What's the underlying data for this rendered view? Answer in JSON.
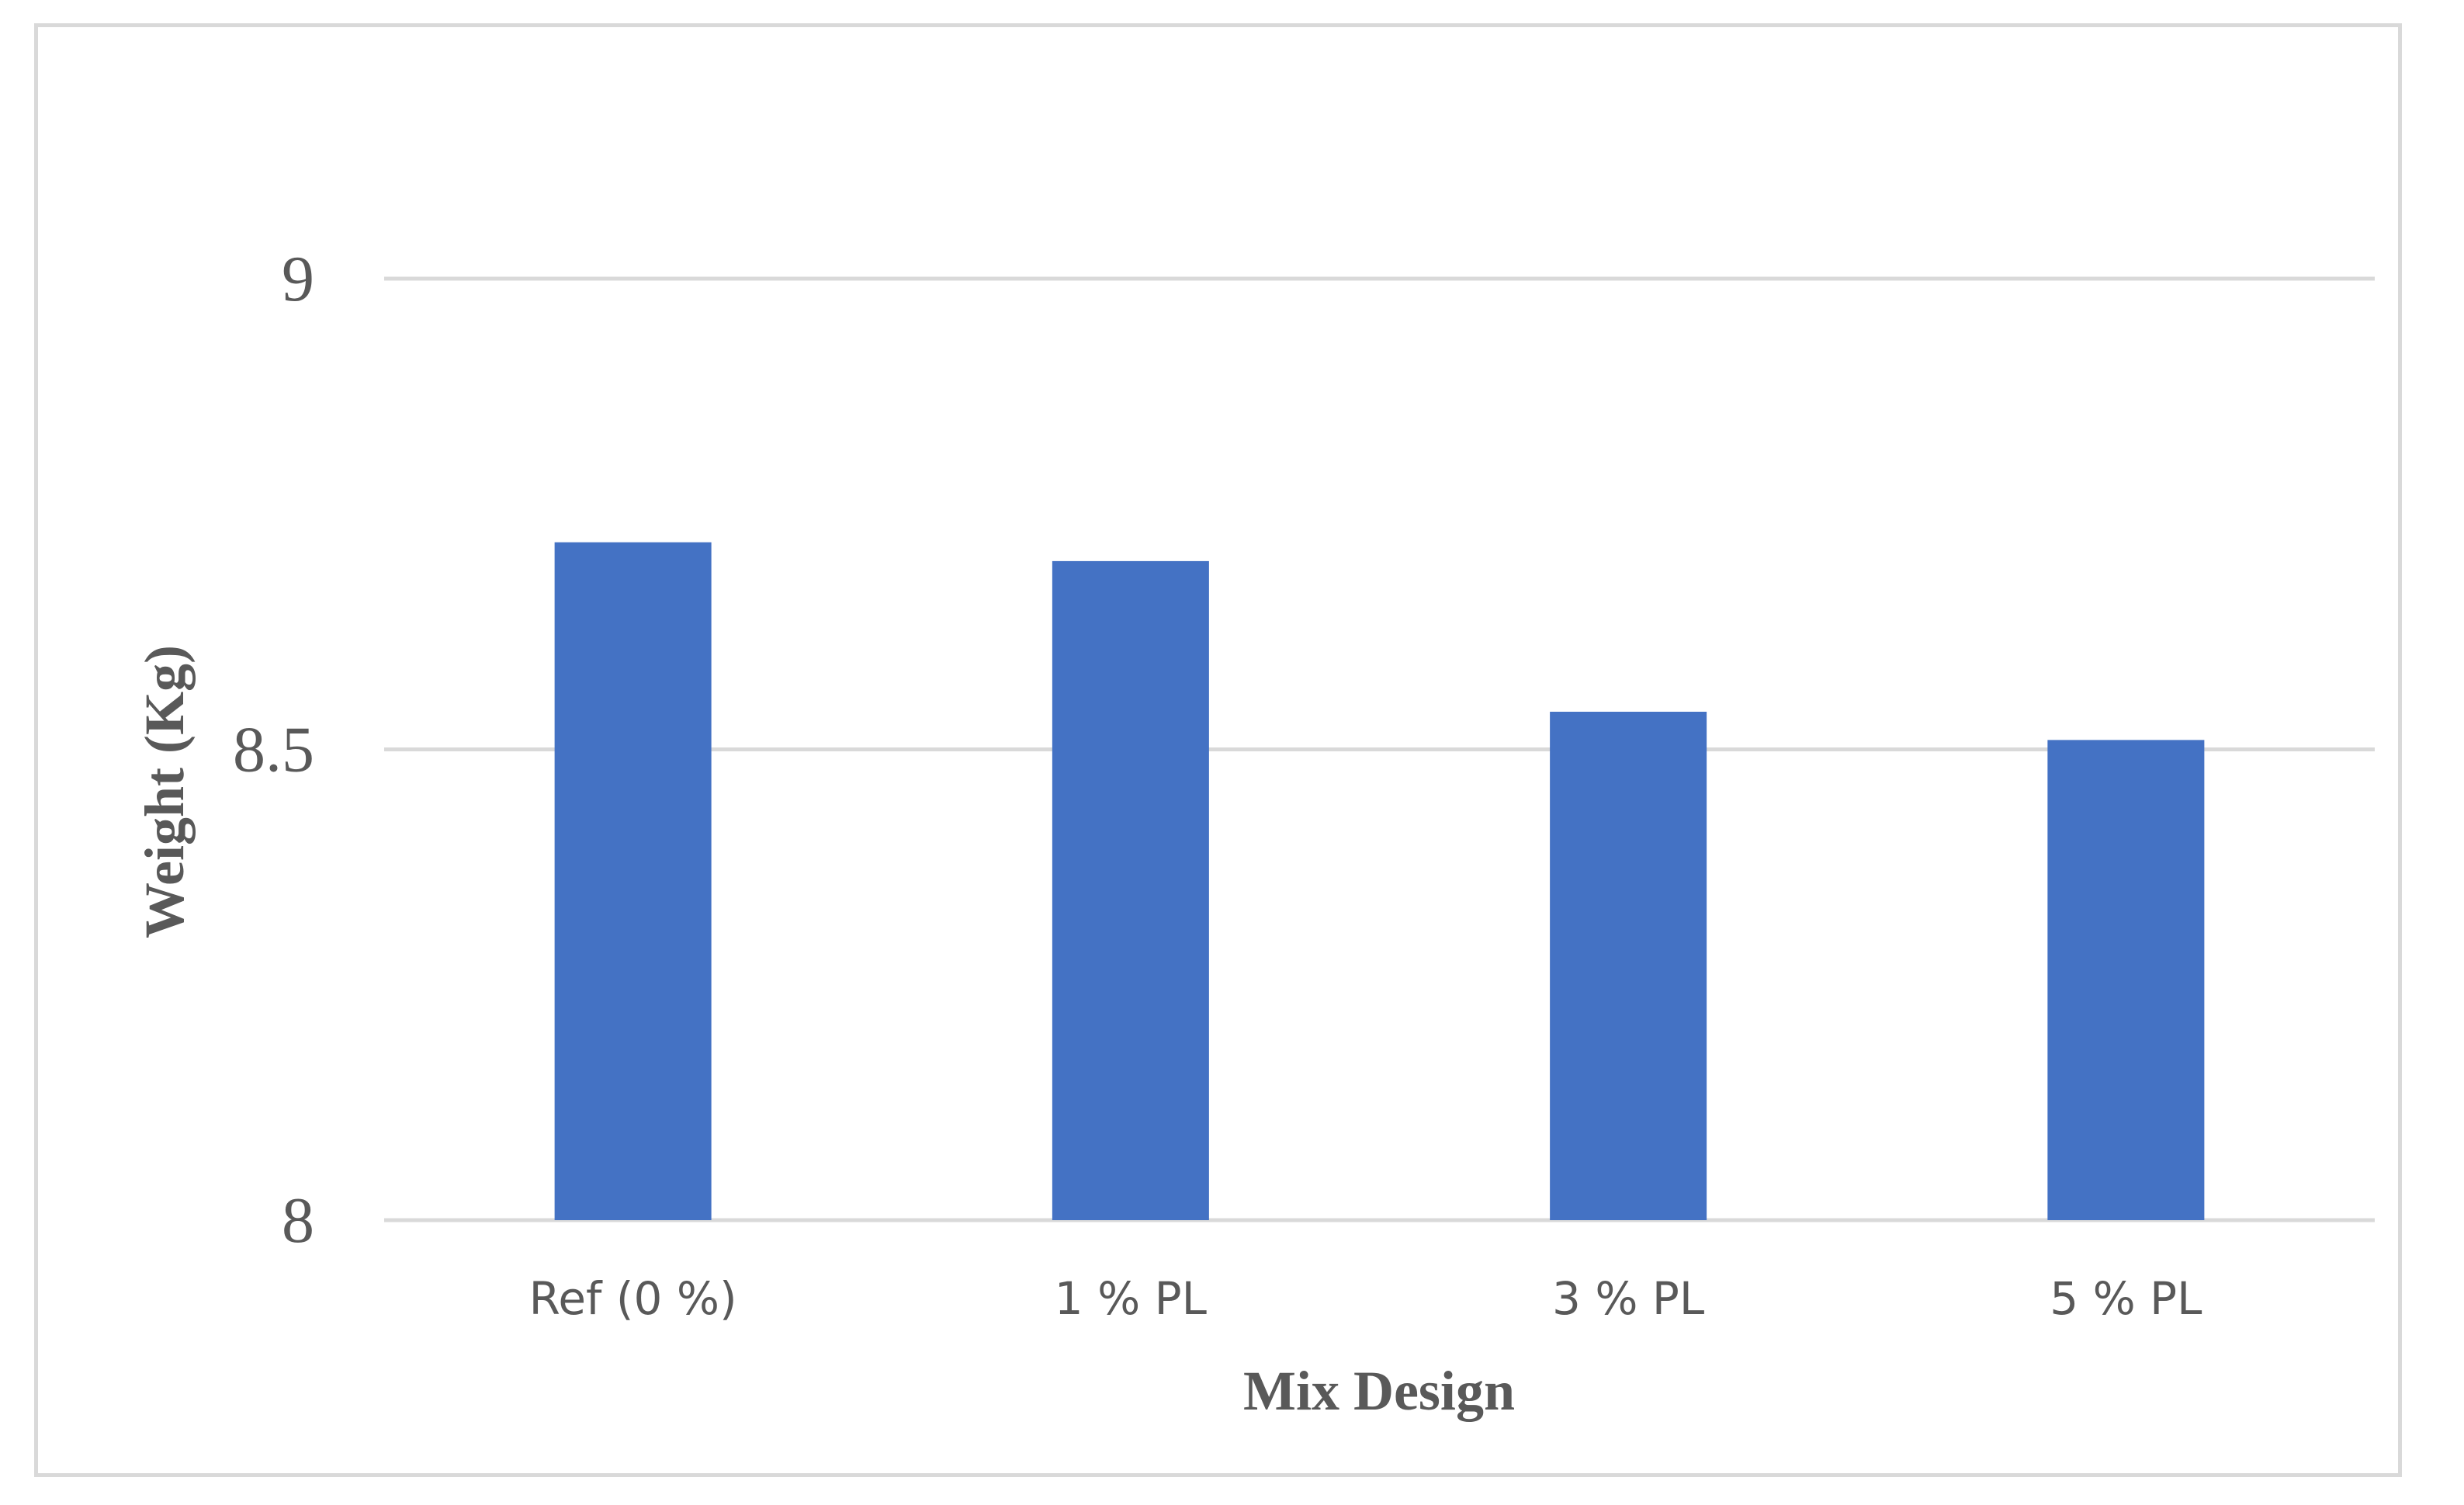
{
  "chart_data": {
    "type": "bar",
    "title": "",
    "xlabel": "Mix Design",
    "ylabel": "Weight (Kg)",
    "categories": [
      "Ref (0 %)",
      "1 % PL",
      "3 % PL",
      "5 % PL"
    ],
    "values": [
      8.72,
      8.7,
      8.54,
      8.51
    ],
    "ylim": [
      8,
      9
    ],
    "yticks": [
      "8",
      "8.5",
      "9"
    ],
    "ytick_values": [
      8,
      8.5,
      9
    ],
    "grid": true,
    "legend": "none",
    "bar_color": "#4472c4",
    "grid_color": "#d9d9d9",
    "text_color": "#595959"
  }
}
